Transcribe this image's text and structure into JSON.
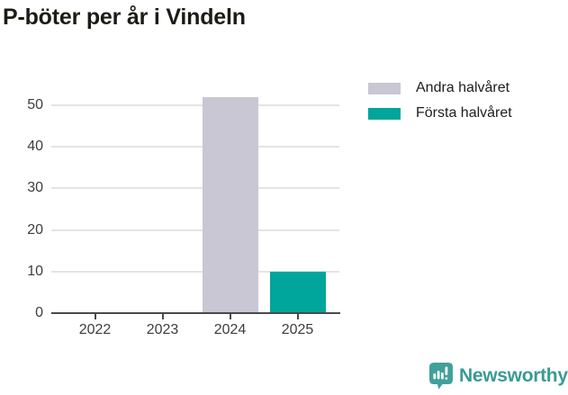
{
  "chart_data": {
    "type": "bar",
    "stacked": true,
    "title": "P-böter per år i Vindeln",
    "categories": [
      "2022",
      "2023",
      "2024",
      "2025"
    ],
    "series": [
      {
        "name": "Andra halvåret",
        "color": "#c9c7d4",
        "values": [
          0,
          0,
          52,
          0
        ]
      },
      {
        "name": "Första halvåret",
        "color": "#00a59b",
        "values": [
          0,
          0,
          0,
          10
        ]
      }
    ],
    "xlabel": "",
    "ylabel": "",
    "ylim": [
      0,
      55
    ],
    "yticks": [
      0,
      10,
      20,
      30,
      40,
      50
    ],
    "grid": true,
    "legend_position": "top-right"
  },
  "footer": {
    "brand": "Newsworthy"
  },
  "colors": {
    "bar_gray": "#c9c7d4",
    "bar_teal": "#00a59b",
    "brand_teal": "#3a9a94",
    "title_text": "#1c1c16",
    "axis_text": "#3d3d3d",
    "gridline": "#e4e4e4",
    "axis_line": "#4a4a4a"
  }
}
